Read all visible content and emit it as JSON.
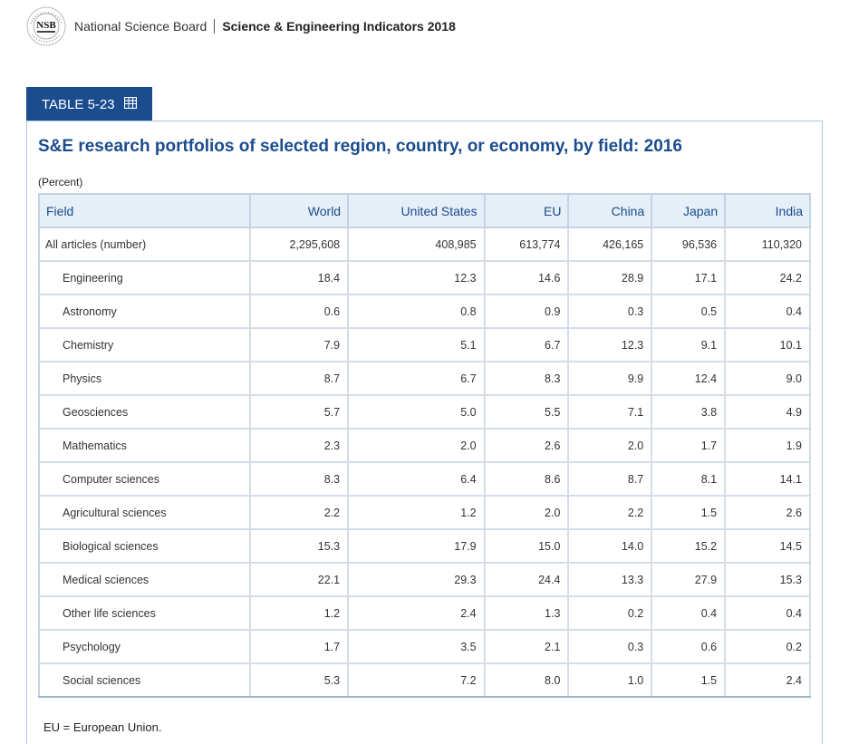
{
  "header": {
    "org": "National Science Board",
    "report": "Science & Engineering Indicators 2018",
    "logo_icon": "nsb-seal-icon"
  },
  "tab": {
    "label": "TABLE 5-23",
    "icon": "table-grid-icon"
  },
  "table": {
    "title": "S&E research portfolios of selected region, country, or economy, by field: 2016",
    "unit": "(Percent)",
    "columns": [
      "Field",
      "World",
      "United States",
      "EU",
      "China",
      "Japan",
      "India"
    ],
    "total_row": {
      "label": "All articles (number)",
      "values": [
        "2,295,608",
        "408,985",
        "613,774",
        "426,165",
        "96,536",
        "110,320"
      ]
    },
    "rows": [
      {
        "label": "Engineering",
        "values": [
          "18.4",
          "12.3",
          "14.6",
          "28.9",
          "17.1",
          "24.2"
        ]
      },
      {
        "label": "Astronomy",
        "values": [
          "0.6",
          "0.8",
          "0.9",
          "0.3",
          "0.5",
          "0.4"
        ]
      },
      {
        "label": "Chemistry",
        "values": [
          "7.9",
          "5.1",
          "6.7",
          "12.3",
          "9.1",
          "10.1"
        ]
      },
      {
        "label": "Physics",
        "values": [
          "8.7",
          "6.7",
          "8.3",
          "9.9",
          "12.4",
          "9.0"
        ]
      },
      {
        "label": "Geosciences",
        "values": [
          "5.7",
          "5.0",
          "5.5",
          "7.1",
          "3.8",
          "4.9"
        ]
      },
      {
        "label": "Mathematics",
        "values": [
          "2.3",
          "2.0",
          "2.6",
          "2.0",
          "1.7",
          "1.9"
        ]
      },
      {
        "label": "Computer sciences",
        "values": [
          "8.3",
          "6.4",
          "8.6",
          "8.7",
          "8.1",
          "14.1"
        ]
      },
      {
        "label": "Agricultural sciences",
        "values": [
          "2.2",
          "1.2",
          "2.0",
          "2.2",
          "1.5",
          "2.6"
        ]
      },
      {
        "label": "Biological sciences",
        "values": [
          "15.3",
          "17.9",
          "15.0",
          "14.0",
          "15.2",
          "14.5"
        ]
      },
      {
        "label": "Medical sciences",
        "values": [
          "22.1",
          "29.3",
          "24.4",
          "13.3",
          "27.9",
          "15.3"
        ]
      },
      {
        "label": "Other life sciences",
        "values": [
          "1.2",
          "2.4",
          "1.3",
          "0.2",
          "0.4",
          "0.4"
        ]
      },
      {
        "label": "Psychology",
        "values": [
          "1.7",
          "3.5",
          "2.1",
          "0.3",
          "0.6",
          "0.2"
        ]
      },
      {
        "label": "Social sciences",
        "values": [
          "5.3",
          "7.2",
          "8.0",
          "1.0",
          "1.5",
          "2.4"
        ]
      }
    ],
    "note": "EU = European Union."
  }
}
